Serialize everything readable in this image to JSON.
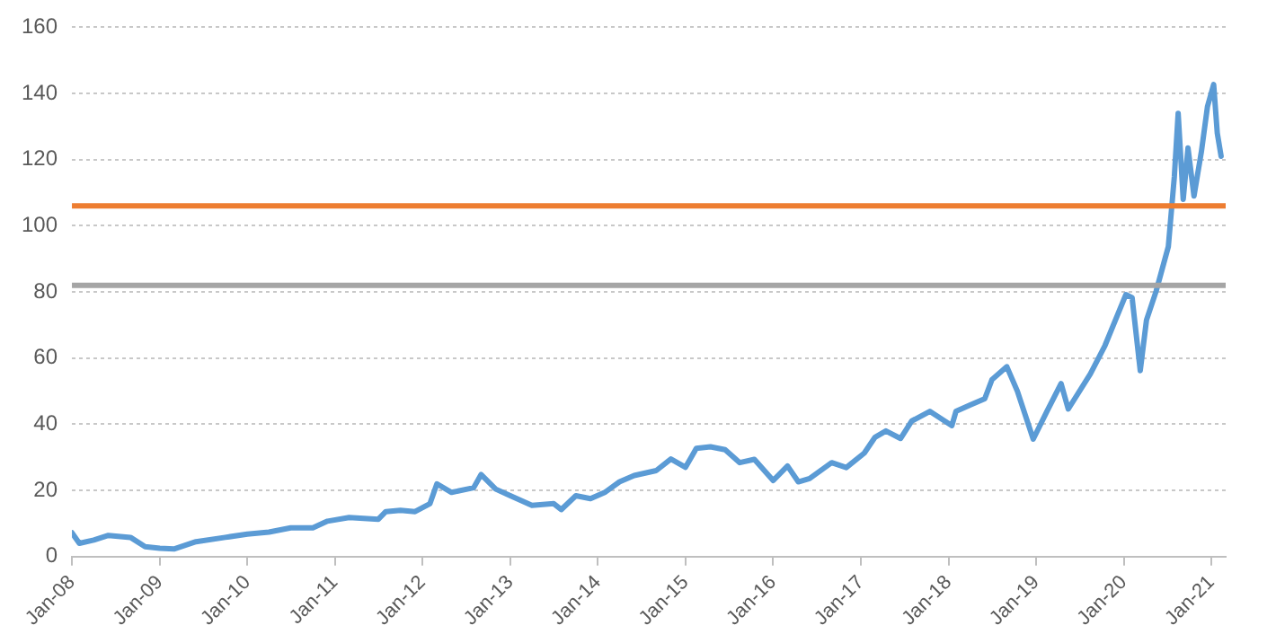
{
  "chart_data": {
    "type": "line",
    "x": [
      "2008-01-01",
      "2008-02-01",
      "2008-04-01",
      "2008-06-01",
      "2008-09-01",
      "2008-11-01",
      "2009-01-01",
      "2009-03-01",
      "2009-06-01",
      "2009-10-01",
      "2010-01-01",
      "2010-04-01",
      "2010-07-01",
      "2010-10-01",
      "2010-12-01",
      "2011-03-01",
      "2011-07-01",
      "2011-08-01",
      "2011-10-01",
      "2011-12-01",
      "2012-02-01",
      "2012-03-01",
      "2012-05-01",
      "2012-08-01",
      "2012-09-01",
      "2012-11-01",
      "2013-01-01",
      "2013-04-01",
      "2013-07-01",
      "2013-08-01",
      "2013-10-01",
      "2013-12-01",
      "2014-02-01",
      "2014-04-01",
      "2014-06-01",
      "2014-09-01",
      "2014-11-01",
      "2015-01-01",
      "2015-02-15",
      "2015-04-15",
      "2015-06-15",
      "2015-08-15",
      "2015-10-15",
      "2016-01-01",
      "2016-03-01",
      "2016-04-15",
      "2016-06-01",
      "2016-09-01",
      "2016-11-01",
      "2017-01-15",
      "2017-03-01",
      "2017-04-15",
      "2017-06-15",
      "2017-08-01",
      "2017-10-15",
      "2018-01-15",
      "2018-02-01",
      "2018-04-01",
      "2018-06-01",
      "2018-07-01",
      "2018-09-01",
      "2018-10-15",
      "2018-12-20",
      "2019-02-15",
      "2019-04-15",
      "2019-05-15",
      "2019-08-15",
      "2019-10-15",
      "2020-01-10",
      "2020-02-05",
      "2020-03-10",
      "2020-04-05",
      "2020-05-15",
      "2020-07-05",
      "2020-07-30",
      "2020-08-15",
      "2020-09-05",
      "2020-09-25",
      "2020-10-20",
      "2020-11-20",
      "2020-12-15",
      "2021-01-10",
      "2021-01-25",
      "2021-02-10"
    ],
    "series": [
      {
        "color": "#5b9bd5",
        "values": [
          7.2,
          4,
          5,
          6.4,
          5.8,
          3,
          2.5,
          2.3,
          4.5,
          5.8,
          6.8,
          7.4,
          8.7,
          8.7,
          10.7,
          11.8,
          11.3,
          13.6,
          14,
          13.6,
          16,
          22,
          19.4,
          20.8,
          24.8,
          20.4,
          18.4,
          15.5,
          16,
          14.2,
          18.4,
          17.5,
          19.5,
          22.6,
          24.5,
          26,
          29.5,
          27,
          32.7,
          33.2,
          32.3,
          28.4,
          29.4,
          23,
          27.4,
          22.6,
          23.6,
          28.4,
          26.9,
          31.3,
          36.1,
          38,
          35.7,
          41,
          43.9,
          39.6,
          43.9,
          45.8,
          47.7,
          53.5,
          57.4,
          50,
          35.5,
          43.9,
          52.3,
          44.6,
          55.2,
          63.8,
          79.2,
          78.3,
          56.2,
          71.5,
          80.2,
          93.7,
          114.8,
          134,
          108,
          123.5,
          109,
          122.5,
          136,
          142.7,
          128,
          121
        ]
      }
    ],
    "xlim": [
      "2008-01-01",
      "2021-03-01"
    ],
    "xticks": [
      {
        "value": "2008-01-01",
        "label": "Jan-08"
      },
      {
        "value": "2009-01-01",
        "label": "Jan-09"
      },
      {
        "value": "2010-01-01",
        "label": "Jan-10"
      },
      {
        "value": "2011-01-01",
        "label": "Jan-11"
      },
      {
        "value": "2012-01-01",
        "label": "Jan-12"
      },
      {
        "value": "2013-01-01",
        "label": "Jan-13"
      },
      {
        "value": "2014-01-01",
        "label": "Jan-14"
      },
      {
        "value": "2015-01-01",
        "label": "Jan-15"
      },
      {
        "value": "2016-01-01",
        "label": "Jan-16"
      },
      {
        "value": "2017-01-01",
        "label": "Jan-17"
      },
      {
        "value": "2018-01-01",
        "label": "Jan-18"
      },
      {
        "value": "2019-01-01",
        "label": "Jan-19"
      },
      {
        "value": "2020-01-01",
        "label": "Jan-20"
      },
      {
        "value": "2021-01-01",
        "label": "Jan-21"
      }
    ],
    "ylim": [
      0,
      160
    ],
    "yticks": [
      0,
      20,
      40,
      60,
      80,
      100,
      120,
      140,
      160
    ],
    "ref_lines": [
      {
        "axis": "y",
        "value": 106,
        "color": "#ed7d31"
      },
      {
        "axis": "y",
        "value": 82,
        "color": "#a5a5a5"
      }
    ],
    "grid": "y",
    "marker": "none",
    "line_style": "solid",
    "legend": false
  }
}
